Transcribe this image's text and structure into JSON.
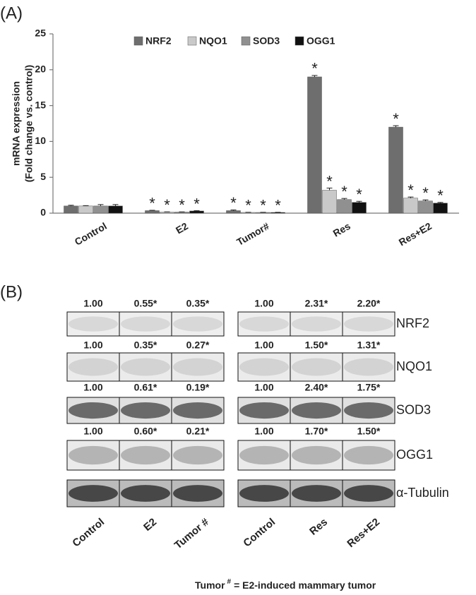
{
  "chart_data": {
    "type": "bar",
    "panel_label": "(A)",
    "ylabel": [
      "mRNA expression",
      "(Fold change vs. control)"
    ],
    "categories": [
      "Control",
      "E2",
      "Tumor#",
      "Res",
      "Res+E2"
    ],
    "series": [
      {
        "name": "NRF2",
        "color": "#6e6e6e",
        "values": [
          1.0,
          0.35,
          0.35,
          19.0,
          12.0
        ],
        "errors": [
          0.1,
          0.05,
          0.1,
          0.2,
          0.2
        ],
        "significance": [
          null,
          "*",
          "*",
          "*",
          "*"
        ]
      },
      {
        "name": "NQO1",
        "color": "#c9c9c9",
        "values": [
          1.0,
          0.15,
          0.1,
          3.2,
          2.1
        ],
        "errors": [
          0.05,
          0.03,
          0.02,
          0.3,
          0.15
        ],
        "significance": [
          null,
          "*",
          "*",
          "*",
          "*"
        ]
      },
      {
        "name": "SOD3",
        "color": "#909090",
        "values": [
          1.0,
          0.15,
          0.1,
          1.9,
          1.7
        ],
        "errors": [
          0.2,
          0.03,
          0.02,
          0.15,
          0.15
        ],
        "significance": [
          null,
          "*",
          "*",
          "*",
          "*"
        ]
      },
      {
        "name": "OGG1",
        "color": "#111111",
        "values": [
          1.0,
          0.3,
          0.1,
          1.5,
          1.4
        ],
        "errors": [
          0.2,
          0.05,
          0.02,
          0.15,
          0.1
        ],
        "significance": [
          null,
          "*",
          "*",
          "*",
          "*"
        ]
      }
    ],
    "ylim": [
      0,
      25
    ],
    "yticks": [
      0,
      5,
      10,
      15,
      20,
      25
    ],
    "legend": "top"
  },
  "blot": {
    "panel_label": "(B)",
    "left_lanes": [
      "Control",
      "E2",
      "Tumor #"
    ],
    "right_lanes": [
      "Control",
      "Res",
      "Res+E2"
    ],
    "rows": [
      {
        "name": "NRF2",
        "left": [
          "1.00",
          "0.55*",
          "0.35*"
        ],
        "right": [
          "1.00",
          "2.31*",
          "2.20*"
        ]
      },
      {
        "name": "NQO1",
        "left": [
          "1.00",
          "0.35*",
          "0.27*"
        ],
        "right": [
          "1.00",
          "1.50*",
          "1.31*"
        ]
      },
      {
        "name": "SOD3",
        "left": [
          "1.00",
          "0.61*",
          "0.19*"
        ],
        "right": [
          "1.00",
          "2.40*",
          "1.75*"
        ]
      },
      {
        "name": "OGG1",
        "left": [
          "1.00",
          "0.60*",
          "0.21*"
        ],
        "right": [
          "1.00",
          "1.70*",
          "1.50*"
        ]
      },
      {
        "name": "α-Tubulin"
      }
    ],
    "footnote": {
      "main": "Tumor",
      "superscript": "#",
      "rest": "= E2-induced mammary tumor"
    }
  }
}
